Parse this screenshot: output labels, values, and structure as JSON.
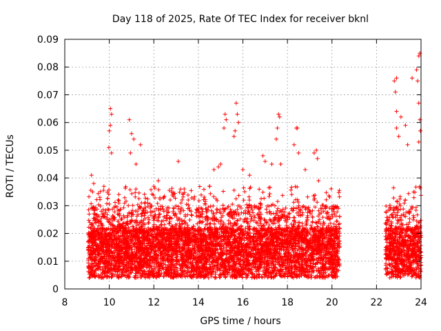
{
  "chart_data": {
    "type": "scatter",
    "title": "Day 118 of 2025, Rate Of TEC Index for receiver bknl",
    "xlabel": "GPS time / hours",
    "ylabel": "ROTI / TECUs",
    "xlim": [
      8,
      24
    ],
    "ylim": [
      0,
      0.09
    ],
    "x_ticks": [
      8,
      10,
      12,
      14,
      16,
      18,
      20,
      22,
      24
    ],
    "x_tick_labels": [
      "8",
      "10",
      "12",
      "14",
      "16",
      "18",
      "20",
      "22",
      "24"
    ],
    "y_ticks": [
      0,
      0.01,
      0.02,
      0.03,
      0.04,
      0.05,
      0.06,
      0.07,
      0.08,
      0.09
    ],
    "y_tick_labels": [
      "0",
      "0.01",
      "0.02",
      "0.03",
      "0.04",
      "0.05",
      "0.06",
      "0.07",
      "0.08",
      "0.09"
    ],
    "grid": true,
    "marker": "+",
    "color": "#ff0000",
    "series": [
      {
        "name": "ROTI",
        "segments": [
          {
            "x_start": 9.05,
            "x_end": 20.35
          },
          {
            "x_start": 22.4,
            "x_end": 24.0
          }
        ],
        "points": [
          [
            9.2,
            0.041
          ],
          [
            9.3,
            0.038
          ],
          [
            9.25,
            0.035
          ],
          [
            10.05,
            0.065
          ],
          [
            10.1,
            0.063
          ],
          [
            10.05,
            0.059
          ],
          [
            10.0,
            0.057
          ],
          [
            9.98,
            0.051
          ],
          [
            10.1,
            0.049
          ],
          [
            10.9,
            0.061
          ],
          [
            11.0,
            0.056
          ],
          [
            10.95,
            0.049
          ],
          [
            11.1,
            0.054
          ],
          [
            11.4,
            0.052
          ],
          [
            11.2,
            0.045
          ],
          [
            12.0,
            0.037
          ],
          [
            12.2,
            0.039
          ],
          [
            12.45,
            0.033
          ],
          [
            13.1,
            0.046
          ],
          [
            13.2,
            0.036
          ],
          [
            14.5,
            0.037
          ],
          [
            14.7,
            0.043
          ],
          [
            14.9,
            0.044
          ],
          [
            15.0,
            0.045
          ],
          [
            15.2,
            0.063
          ],
          [
            15.25,
            0.061
          ],
          [
            15.15,
            0.058
          ],
          [
            15.7,
            0.067
          ],
          [
            15.75,
            0.063
          ],
          [
            15.65,
            0.057
          ],
          [
            15.6,
            0.055
          ],
          [
            15.8,
            0.06
          ],
          [
            16.0,
            0.043
          ],
          [
            16.3,
            0.041
          ],
          [
            16.9,
            0.048
          ],
          [
            17.0,
            0.046
          ],
          [
            17.3,
            0.045
          ],
          [
            17.6,
            0.063
          ],
          [
            17.65,
            0.062
          ],
          [
            17.55,
            0.058
          ],
          [
            17.5,
            0.054
          ],
          [
            17.7,
            0.045
          ],
          [
            18.4,
            0.058
          ],
          [
            18.45,
            0.058
          ],
          [
            18.3,
            0.052
          ],
          [
            18.5,
            0.049
          ],
          [
            18.8,
            0.043
          ],
          [
            19.2,
            0.049
          ],
          [
            19.3,
            0.05
          ],
          [
            19.35,
            0.047
          ],
          [
            19.4,
            0.039
          ],
          [
            22.8,
            0.075
          ],
          [
            22.9,
            0.076
          ],
          [
            22.85,
            0.071
          ],
          [
            22.9,
            0.064
          ],
          [
            23.1,
            0.062
          ],
          [
            22.9,
            0.058
          ],
          [
            23.0,
            0.055
          ],
          [
            23.3,
            0.059
          ],
          [
            23.4,
            0.052
          ],
          [
            23.6,
            0.076
          ],
          [
            23.8,
            0.079
          ],
          [
            23.9,
            0.084
          ],
          [
            23.95,
            0.085
          ],
          [
            23.85,
            0.075
          ],
          [
            23.9,
            0.067
          ],
          [
            23.95,
            0.061
          ],
          [
            23.97,
            0.057
          ],
          [
            23.9,
            0.053
          ]
        ]
      }
    ]
  }
}
